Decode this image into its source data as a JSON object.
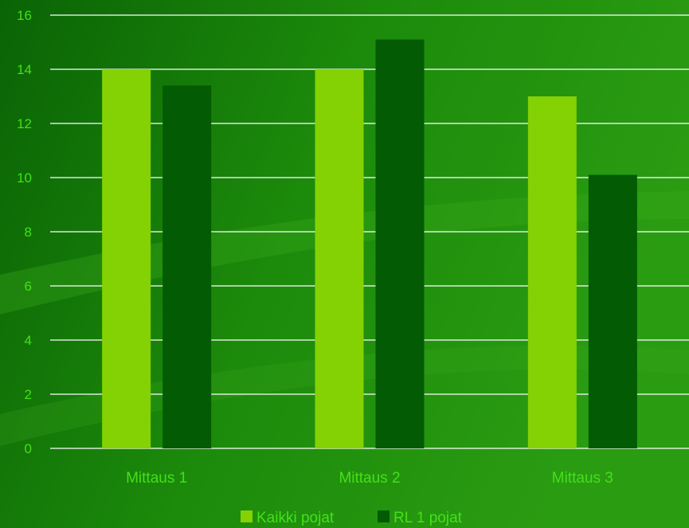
{
  "chart_data": {
    "type": "bar",
    "categories": [
      "Mittaus 1",
      "Mittaus 2",
      "Mittaus 3"
    ],
    "series": [
      {
        "name": "Kaikki pojat",
        "values": [
          14,
          14,
          13
        ],
        "color": "#84d204"
      },
      {
        "name": "RL 1 pojat",
        "values": [
          13.4,
          15.1,
          10.1
        ],
        "color": "#035b04"
      }
    ],
    "ylim": [
      0,
      16
    ],
    "yticks": [
      0,
      2,
      4,
      6,
      8,
      10,
      12,
      14,
      16
    ],
    "grid": true,
    "legend": "bottom",
    "title": "",
    "xlabel": "",
    "ylabel": ""
  },
  "colors": {
    "background_dark": "#0b6b06",
    "background_light": "#2a9a10",
    "gridline": "#ffffff",
    "label_text": "#44e01a"
  }
}
